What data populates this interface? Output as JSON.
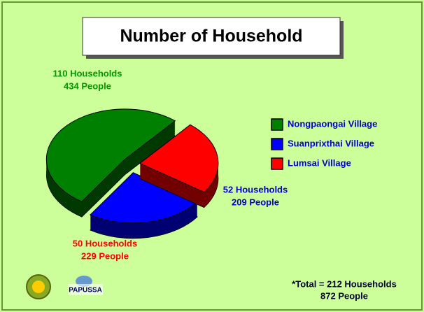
{
  "chart_data": {
    "type": "pie",
    "title": "Number of Household",
    "categories": [
      "Nongpaongai Village",
      "Suanprixthai Village",
      "Lumsai Village"
    ],
    "values": [
      110,
      52,
      50
    ],
    "value_labels": [
      "110 Households",
      "52 Households",
      "50 Households"
    ],
    "people_labels": [
      "434 People",
      "209 People",
      "229 People"
    ],
    "colors": [
      "#008000",
      "#0000ff",
      "#ff0000"
    ],
    "label_colors": [
      "#009900",
      "#0000cc",
      "#ff0000"
    ],
    "legend": "right",
    "annotations": [
      "*Total = 212 Households",
      "872 People"
    ],
    "logo_text": "PAPUSSA"
  }
}
